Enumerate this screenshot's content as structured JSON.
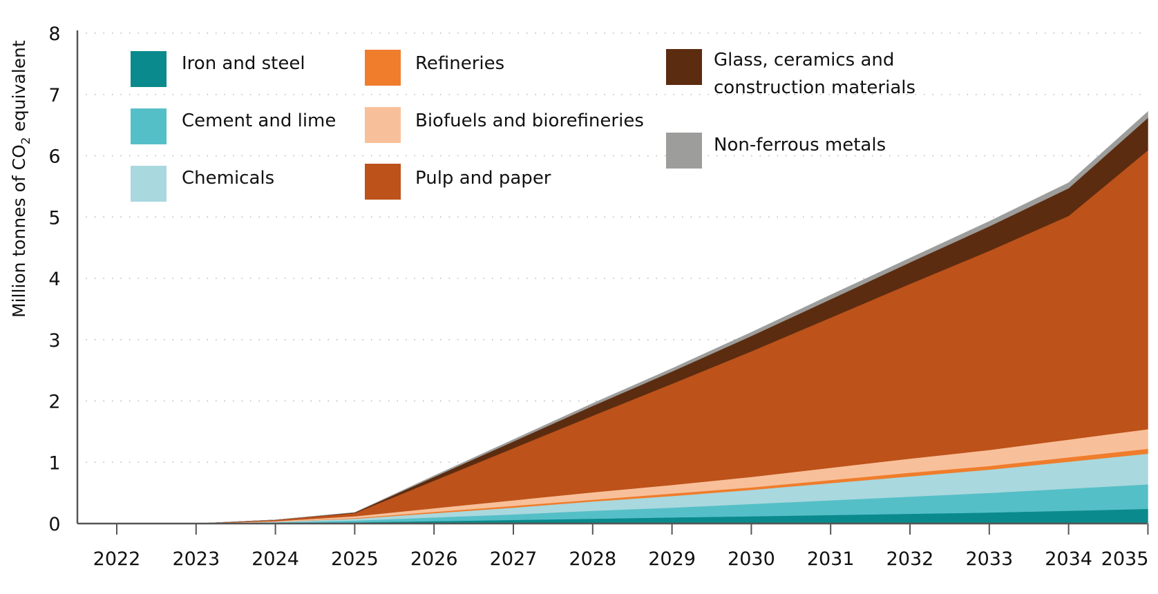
{
  "chart_data": {
    "type": "area",
    "stacked": true,
    "x": [
      "2022",
      "2023",
      "2024",
      "2025",
      "2026",
      "2027",
      "2028",
      "2029",
      "2030",
      "2031",
      "2032",
      "2033",
      "2034",
      "2035"
    ],
    "ylabel_prefix": "Million tonnes of CO",
    "ylabel_subscript": "2",
    "ylabel_suffix": " equivalent",
    "ylim": [
      0,
      8
    ],
    "yticks": [
      "0",
      "1",
      "2",
      "3",
      "4",
      "5",
      "6",
      "7",
      "8"
    ],
    "grid": "horizontal dotted",
    "legend_placement": "top-left, inside plot",
    "series": [
      {
        "name": "Iron and steel",
        "color": "#0a8a8c",
        "values": [
          0,
          0,
          0.01,
          0.02,
          0.04,
          0.06,
          0.08,
          0.1,
          0.12,
          0.14,
          0.16,
          0.18,
          0.21,
          0.24
        ]
      },
      {
        "name": "Cement and lime",
        "color": "#55bfc7",
        "values": [
          0,
          0,
          0.01,
          0.03,
          0.06,
          0.09,
          0.13,
          0.16,
          0.2,
          0.24,
          0.28,
          0.32,
          0.36,
          0.4
        ]
      },
      {
        "name": "Chemicals",
        "color": "#a9d8de",
        "values": [
          0,
          0,
          0.01,
          0.03,
          0.07,
          0.11,
          0.15,
          0.19,
          0.23,
          0.28,
          0.33,
          0.38,
          0.44,
          0.5
        ]
      },
      {
        "name": "Refineries",
        "color": "#ef7d2c",
        "values": [
          0,
          0,
          0,
          0.01,
          0.02,
          0.03,
          0.03,
          0.04,
          0.04,
          0.05,
          0.06,
          0.06,
          0.07,
          0.08
        ]
      },
      {
        "name": "Biofuels and biorefineries",
        "color": "#f8c09a",
        "values": [
          0,
          0,
          0.01,
          0.03,
          0.06,
          0.09,
          0.12,
          0.14,
          0.17,
          0.2,
          0.23,
          0.26,
          0.29,
          0.32
        ]
      },
      {
        "name": "Pulp and paper",
        "color": "#bd521a",
        "values": [
          0,
          0,
          0.02,
          0.05,
          0.45,
          0.85,
          1.25,
          1.65,
          2.05,
          2.45,
          2.85,
          3.25,
          3.65,
          4.55
        ]
      },
      {
        "name": "Glass, ceramics and construction materials",
        "color": "#5c2c10",
        "values": [
          0,
          0,
          0,
          0.01,
          0.06,
          0.11,
          0.16,
          0.2,
          0.25,
          0.3,
          0.35,
          0.4,
          0.45,
          0.53
        ]
      },
      {
        "name": "Non-ferrous metals",
        "color": "#9d9d9b",
        "values": [
          0,
          0,
          0,
          0,
          0.02,
          0.03,
          0.04,
          0.05,
          0.06,
          0.07,
          0.07,
          0.08,
          0.09,
          0.1
        ]
      }
    ]
  }
}
